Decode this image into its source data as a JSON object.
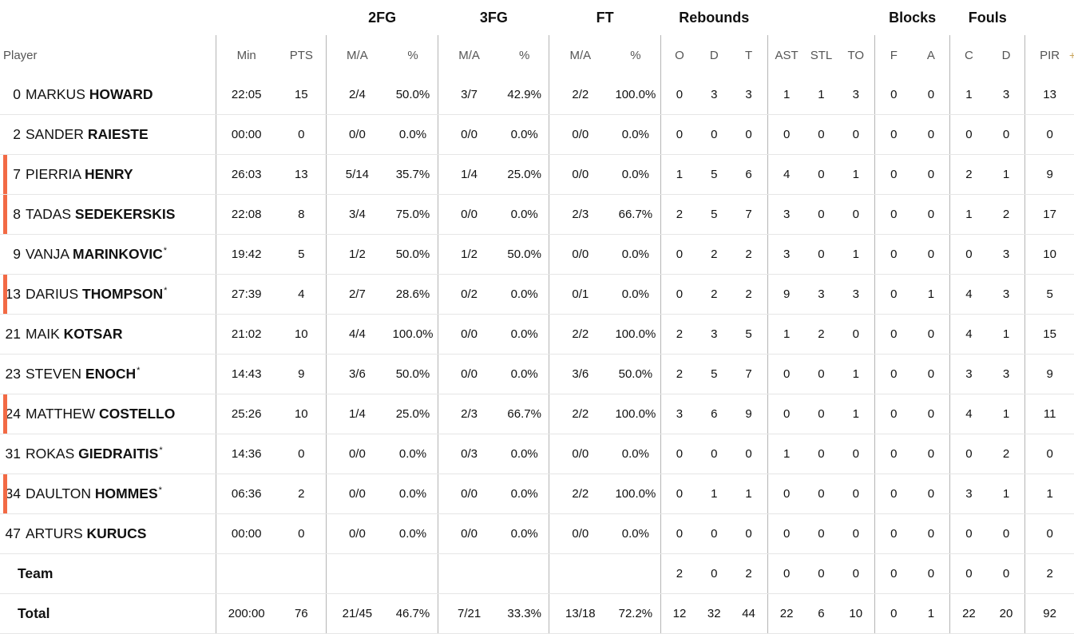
{
  "groups": [
    "2FG",
    "3FG",
    "FT",
    "Rebounds",
    "Blocks",
    "Fouls"
  ],
  "headers": {
    "player": "Player",
    "min": "Min",
    "pts": "PTS",
    "fg2_ma": "M/A",
    "fg2_pct": "%",
    "fg3_ma": "M/A",
    "fg3_pct": "%",
    "ft_ma": "M/A",
    "ft_pct": "%",
    "o": "O",
    "d": "D",
    "t": "T",
    "ast": "AST",
    "stl": "STL",
    "to": "TO",
    "bf": "F",
    "ba": "A",
    "fc": "C",
    "fd": "D",
    "pir": "PIR",
    "plus_icon": "+"
  },
  "players": [
    {
      "num": "0",
      "first": "MARKUS",
      "last": "HOWARD",
      "star": "",
      "starter": false,
      "min": "22:05",
      "pts": "15",
      "fg2_ma": "2/4",
      "fg2_pct": "50.0%",
      "fg3_ma": "3/7",
      "fg3_pct": "42.9%",
      "ft_ma": "2/2",
      "ft_pct": "100.0%",
      "o": "0",
      "d": "3",
      "t": "3",
      "ast": "1",
      "stl": "1",
      "to": "3",
      "bf": "0",
      "ba": "0",
      "fc": "1",
      "fd": "3",
      "pir": "13"
    },
    {
      "num": "2",
      "first": "SANDER",
      "last": "RAIESTE",
      "star": "",
      "starter": false,
      "min": "00:00",
      "pts": "0",
      "fg2_ma": "0/0",
      "fg2_pct": "0.0%",
      "fg3_ma": "0/0",
      "fg3_pct": "0.0%",
      "ft_ma": "0/0",
      "ft_pct": "0.0%",
      "o": "0",
      "d": "0",
      "t": "0",
      "ast": "0",
      "stl": "0",
      "to": "0",
      "bf": "0",
      "ba": "0",
      "fc": "0",
      "fd": "0",
      "pir": "0"
    },
    {
      "num": "7",
      "first": "PIERRIA",
      "last": "HENRY",
      "star": "",
      "starter": true,
      "min": "26:03",
      "pts": "13",
      "fg2_ma": "5/14",
      "fg2_pct": "35.7%",
      "fg3_ma": "1/4",
      "fg3_pct": "25.0%",
      "ft_ma": "0/0",
      "ft_pct": "0.0%",
      "o": "1",
      "d": "5",
      "t": "6",
      "ast": "4",
      "stl": "0",
      "to": "1",
      "bf": "0",
      "ba": "0",
      "fc": "2",
      "fd": "1",
      "pir": "9"
    },
    {
      "num": "8",
      "first": "TADAS",
      "last": "SEDEKERSKIS",
      "star": "",
      "starter": true,
      "min": "22:08",
      "pts": "8",
      "fg2_ma": "3/4",
      "fg2_pct": "75.0%",
      "fg3_ma": "0/0",
      "fg3_pct": "0.0%",
      "ft_ma": "2/3",
      "ft_pct": "66.7%",
      "o": "2",
      "d": "5",
      "t": "7",
      "ast": "3",
      "stl": "0",
      "to": "0",
      "bf": "0",
      "ba": "0",
      "fc": "1",
      "fd": "2",
      "pir": "17"
    },
    {
      "num": "9",
      "first": "VANJA",
      "last": "MARINKOVIC",
      "star": "*",
      "starter": false,
      "min": "19:42",
      "pts": "5",
      "fg2_ma": "1/2",
      "fg2_pct": "50.0%",
      "fg3_ma": "1/2",
      "fg3_pct": "50.0%",
      "ft_ma": "0/0",
      "ft_pct": "0.0%",
      "o": "0",
      "d": "2",
      "t": "2",
      "ast": "3",
      "stl": "0",
      "to": "1",
      "bf": "0",
      "ba": "0",
      "fc": "0",
      "fd": "3",
      "pir": "10"
    },
    {
      "num": "13",
      "first": "DARIUS",
      "last": "THOMPSON",
      "star": "*",
      "starter": true,
      "min": "27:39",
      "pts": "4",
      "fg2_ma": "2/7",
      "fg2_pct": "28.6%",
      "fg3_ma": "0/2",
      "fg3_pct": "0.0%",
      "ft_ma": "0/1",
      "ft_pct": "0.0%",
      "o": "0",
      "d": "2",
      "t": "2",
      "ast": "9",
      "stl": "3",
      "to": "3",
      "bf": "0",
      "ba": "1",
      "fc": "4",
      "fd": "3",
      "pir": "5"
    },
    {
      "num": "21",
      "first": "MAIK",
      "last": "KOTSAR",
      "star": "",
      "starter": false,
      "min": "21:02",
      "pts": "10",
      "fg2_ma": "4/4",
      "fg2_pct": "100.0%",
      "fg3_ma": "0/0",
      "fg3_pct": "0.0%",
      "ft_ma": "2/2",
      "ft_pct": "100.0%",
      "o": "2",
      "d": "3",
      "t": "5",
      "ast": "1",
      "stl": "2",
      "to": "0",
      "bf": "0",
      "ba": "0",
      "fc": "4",
      "fd": "1",
      "pir": "15"
    },
    {
      "num": "23",
      "first": "STEVEN",
      "last": "ENOCH",
      "star": "*",
      "starter": false,
      "min": "14:43",
      "pts": "9",
      "fg2_ma": "3/6",
      "fg2_pct": "50.0%",
      "fg3_ma": "0/0",
      "fg3_pct": "0.0%",
      "ft_ma": "3/6",
      "ft_pct": "50.0%",
      "o": "2",
      "d": "5",
      "t": "7",
      "ast": "0",
      "stl": "0",
      "to": "1",
      "bf": "0",
      "ba": "0",
      "fc": "3",
      "fd": "3",
      "pir": "9"
    },
    {
      "num": "24",
      "first": "MATTHEW",
      "last": "COSTELLO",
      "star": "",
      "starter": true,
      "min": "25:26",
      "pts": "10",
      "fg2_ma": "1/4",
      "fg2_pct": "25.0%",
      "fg3_ma": "2/3",
      "fg3_pct": "66.7%",
      "ft_ma": "2/2",
      "ft_pct": "100.0%",
      "o": "3",
      "d": "6",
      "t": "9",
      "ast": "0",
      "stl": "0",
      "to": "1",
      "bf": "0",
      "ba": "0",
      "fc": "4",
      "fd": "1",
      "pir": "11"
    },
    {
      "num": "31",
      "first": "ROKAS",
      "last": "GIEDRAITIS",
      "star": "*",
      "starter": false,
      "min": "14:36",
      "pts": "0",
      "fg2_ma": "0/0",
      "fg2_pct": "0.0%",
      "fg3_ma": "0/3",
      "fg3_pct": "0.0%",
      "ft_ma": "0/0",
      "ft_pct": "0.0%",
      "o": "0",
      "d": "0",
      "t": "0",
      "ast": "1",
      "stl": "0",
      "to": "0",
      "bf": "0",
      "ba": "0",
      "fc": "0",
      "fd": "2",
      "pir": "0"
    },
    {
      "num": "34",
      "first": "DAULTON",
      "last": "HOMMES",
      "star": "*",
      "starter": true,
      "min": "06:36",
      "pts": "2",
      "fg2_ma": "0/0",
      "fg2_pct": "0.0%",
      "fg3_ma": "0/0",
      "fg3_pct": "0.0%",
      "ft_ma": "2/2",
      "ft_pct": "100.0%",
      "o": "0",
      "d": "1",
      "t": "1",
      "ast": "0",
      "stl": "0",
      "to": "0",
      "bf": "0",
      "ba": "0",
      "fc": "3",
      "fd": "1",
      "pir": "1"
    },
    {
      "num": "47",
      "first": "ARTURS",
      "last": "KURUCS",
      "star": "",
      "starter": false,
      "min": "00:00",
      "pts": "0",
      "fg2_ma": "0/0",
      "fg2_pct": "0.0%",
      "fg3_ma": "0/0",
      "fg3_pct": "0.0%",
      "ft_ma": "0/0",
      "ft_pct": "0.0%",
      "o": "0",
      "d": "0",
      "t": "0",
      "ast": "0",
      "stl": "0",
      "to": "0",
      "bf": "0",
      "ba": "0",
      "fc": "0",
      "fd": "0",
      "pir": "0"
    }
  ],
  "team": {
    "label": "Team",
    "min": "",
    "pts": "",
    "fg2_ma": "",
    "fg2_pct": "",
    "fg3_ma": "",
    "fg3_pct": "",
    "ft_ma": "",
    "ft_pct": "",
    "o": "2",
    "d": "0",
    "t": "2",
    "ast": "0",
    "stl": "0",
    "to": "0",
    "bf": "0",
    "ba": "0",
    "fc": "0",
    "fd": "0",
    "pir": "2"
  },
  "total": {
    "label": "Total",
    "min": "200:00",
    "pts": "76",
    "fg2_ma": "21/45",
    "fg2_pct": "46.7%",
    "fg3_ma": "7/21",
    "fg3_pct": "33.3%",
    "ft_ma": "13/18",
    "ft_pct": "72.2%",
    "o": "12",
    "d": "32",
    "t": "44",
    "ast": "22",
    "stl": "6",
    "to": "10",
    "bf": "0",
    "ba": "1",
    "fc": "22",
    "fd": "20",
    "pir": "92"
  },
  "colors": {
    "starter_bar": "#f26a45",
    "separator": "#b5b5b5"
  }
}
